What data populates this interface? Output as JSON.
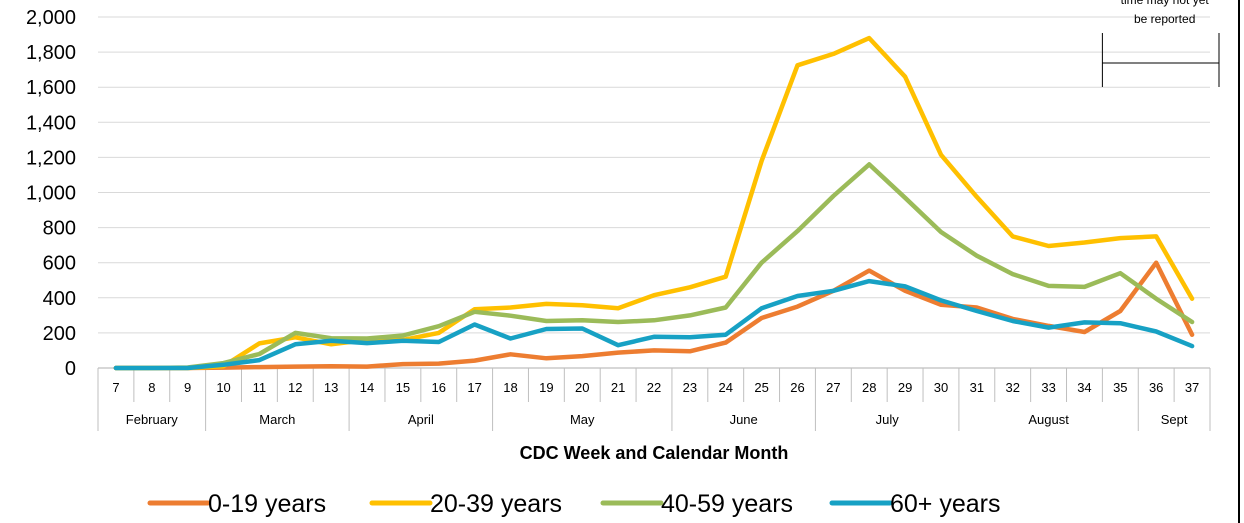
{
  "chart_data": {
    "type": "line",
    "title": "",
    "xlabel": "CDC Week and Calendar Month",
    "ylabel": "",
    "ylim": [
      0,
      2000
    ],
    "y_ticks": [
      "0",
      "200",
      "400",
      "600",
      "800",
      "1,000",
      "1,200",
      "1,400",
      "1,600",
      "1,800",
      "2,000"
    ],
    "grid": true,
    "legend_position": "bottom",
    "categories": [
      "7",
      "8",
      "9",
      "10",
      "11",
      "12",
      "13",
      "14",
      "15",
      "16",
      "17",
      "18",
      "19",
      "20",
      "21",
      "22",
      "23",
      "24",
      "25",
      "26",
      "27",
      "28",
      "29",
      "30",
      "31",
      "32",
      "33",
      "34",
      "35",
      "36",
      "37"
    ],
    "months": [
      {
        "label": "February",
        "weeks": 3
      },
      {
        "label": "March",
        "weeks": 4
      },
      {
        "label": "April",
        "weeks": 4
      },
      {
        "label": "May",
        "weeks": 5
      },
      {
        "label": "June",
        "weeks": 4
      },
      {
        "label": "July",
        "weeks": 4
      },
      {
        "label": "August",
        "weeks": 5
      },
      {
        "label": "Sept",
        "weeks": 2
      }
    ],
    "annotation": {
      "lines": [
        "time may not yet",
        "be reported"
      ]
    },
    "series": [
      {
        "name": "0-19 years",
        "color": "#ED7D31",
        "values": [
          0,
          0,
          0,
          2,
          5,
          8,
          10,
          8,
          22,
          25,
          42,
          78,
          55,
          68,
          88,
          100,
          95,
          145,
          285,
          350,
          440,
          555,
          440,
          360,
          345,
          280,
          240,
          205,
          325,
          600,
          190
        ]
      },
      {
        "name": "20-39 years",
        "color": "#FFC000",
        "values": [
          0,
          0,
          0,
          10,
          140,
          175,
          135,
          160,
          160,
          200,
          335,
          345,
          365,
          358,
          340,
          415,
          460,
          520,
          1180,
          1725,
          1790,
          1880,
          1660,
          1215,
          975,
          750,
          695,
          715,
          740,
          750,
          395
        ]
      },
      {
        "name": "40-59 years",
        "color": "#9BBB59",
        "values": [
          0,
          0,
          3,
          28,
          80,
          200,
          170,
          168,
          185,
          238,
          320,
          298,
          268,
          272,
          262,
          272,
          300,
          345,
          600,
          780,
          980,
          1160,
          970,
          775,
          640,
          535,
          468,
          462,
          540,
          395,
          262
        ]
      },
      {
        "name": "60+ years",
        "color": "#17A1C4",
        "values": [
          0,
          0,
          0,
          18,
          45,
          135,
          155,
          142,
          155,
          148,
          248,
          168,
          222,
          225,
          130,
          178,
          175,
          190,
          340,
          410,
          440,
          495,
          465,
          385,
          325,
          268,
          230,
          260,
          255,
          208,
          125
        ]
      }
    ]
  }
}
